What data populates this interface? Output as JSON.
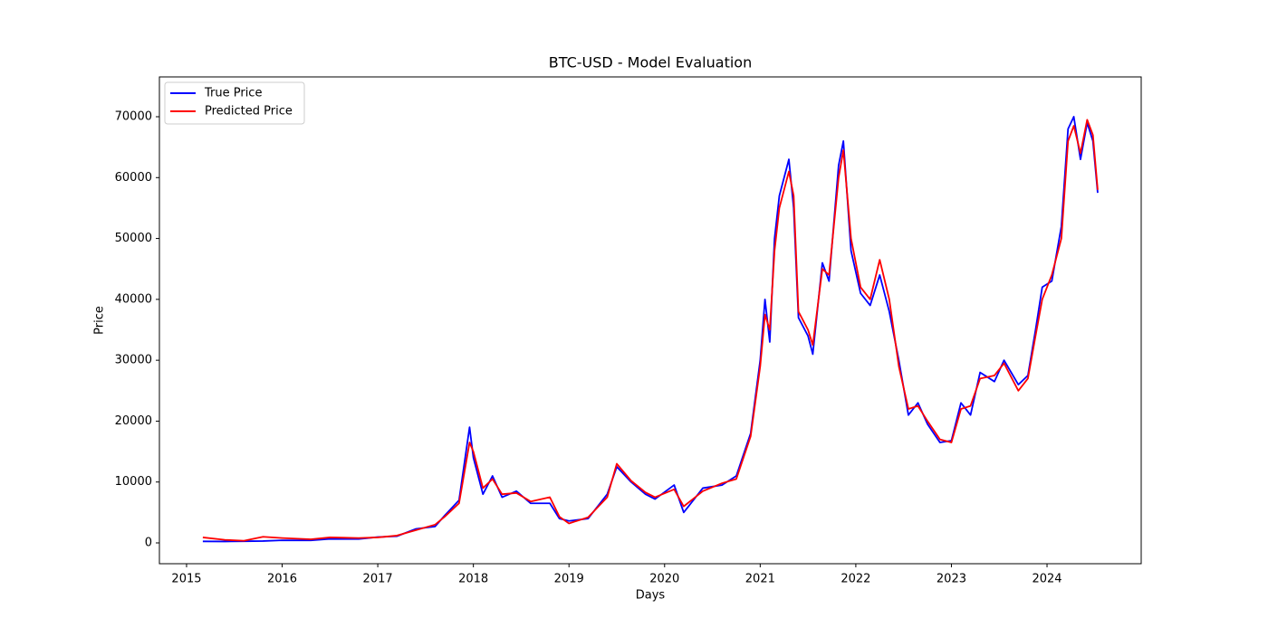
{
  "chart_data": {
    "type": "line",
    "title": "BTC-USD - Model Evaluation",
    "x_label": "Days",
    "y_label": "Price",
    "x": [
      2015.17,
      2015.4,
      2015.6,
      2015.8,
      2016.0,
      2016.3,
      2016.5,
      2016.8,
      2017.0,
      2017.2,
      2017.4,
      2017.6,
      2017.7,
      2017.85,
      2017.96,
      2018.0,
      2018.1,
      2018.2,
      2018.3,
      2018.45,
      2018.6,
      2018.8,
      2018.9,
      2019.0,
      2019.2,
      2019.4,
      2019.5,
      2019.65,
      2019.8,
      2019.9,
      2020.1,
      2020.2,
      2020.4,
      2020.6,
      2020.75,
      2020.9,
      2021.0,
      2021.05,
      2021.1,
      2021.15,
      2021.2,
      2021.3,
      2021.35,
      2021.4,
      2021.5,
      2021.55,
      2021.65,
      2021.72,
      2021.82,
      2021.87,
      2021.95,
      2022.05,
      2022.15,
      2022.25,
      2022.35,
      2022.45,
      2022.55,
      2022.65,
      2022.75,
      2022.88,
      2023.0,
      2023.1,
      2023.2,
      2023.3,
      2023.45,
      2023.55,
      2023.7,
      2023.8,
      2023.88,
      2023.95,
      2024.05,
      2024.15,
      2024.22,
      2024.28,
      2024.35,
      2024.42,
      2024.48,
      2024.53
    ],
    "series": [
      {
        "name": "True Price",
        "color": "#0000ff",
        "values": [
          250,
          230,
          270,
          310,
          430,
          420,
          650,
          640,
          960,
          1100,
          2300,
          2700,
          4500,
          7000,
          19000,
          14000,
          8000,
          11000,
          7500,
          8500,
          6500,
          6500,
          4000,
          3600,
          4000,
          8000,
          12500,
          10000,
          8000,
          7200,
          9500,
          5000,
          9000,
          9500,
          11000,
          18000,
          30000,
          40000,
          33000,
          50000,
          57000,
          63000,
          55000,
          37000,
          34000,
          31000,
          46000,
          43000,
          62000,
          66000,
          48000,
          41000,
          39000,
          44000,
          38000,
          30000,
          21000,
          23000,
          19500,
          16500,
          16800,
          23000,
          21000,
          28000,
          26500,
          30000,
          26000,
          27500,
          35000,
          42000,
          43000,
          52000,
          68000,
          70000,
          63000,
          69000,
          66000,
          57500
        ]
      },
      {
        "name": "Predicted Price",
        "color": "#ff0000",
        "values": [
          900,
          500,
          350,
          1000,
          800,
          600,
          900,
          800,
          900,
          1200,
          2100,
          3000,
          4300,
          6500,
          16500,
          15000,
          9000,
          10500,
          8000,
          8200,
          6800,
          7500,
          4300,
          3200,
          4200,
          7500,
          13000,
          10200,
          8300,
          7500,
          8800,
          6000,
          8500,
          9800,
          10500,
          17500,
          29000,
          37500,
          35000,
          48000,
          55000,
          61000,
          57000,
          38000,
          35000,
          32500,
          45000,
          44000,
          60000,
          64500,
          50000,
          42000,
          40000,
          46500,
          40000,
          29000,
          22000,
          22500,
          20000,
          17000,
          16500,
          22000,
          22500,
          27000,
          27500,
          29500,
          25000,
          27000,
          34000,
          40000,
          44000,
          50000,
          66000,
          68500,
          64000,
          69500,
          67000,
          58000
        ]
      }
    ],
    "xlim": [
      2014.716,
      2024.985
    ],
    "xticks": [
      2015,
      2016,
      2017,
      2018,
      2019,
      2020,
      2021,
      2022,
      2023,
      2024
    ],
    "ylim": [
      -3418,
      76539
    ],
    "yticks": [
      0,
      10000,
      20000,
      30000,
      40000,
      50000,
      60000,
      70000
    ],
    "legend": "upper left"
  }
}
